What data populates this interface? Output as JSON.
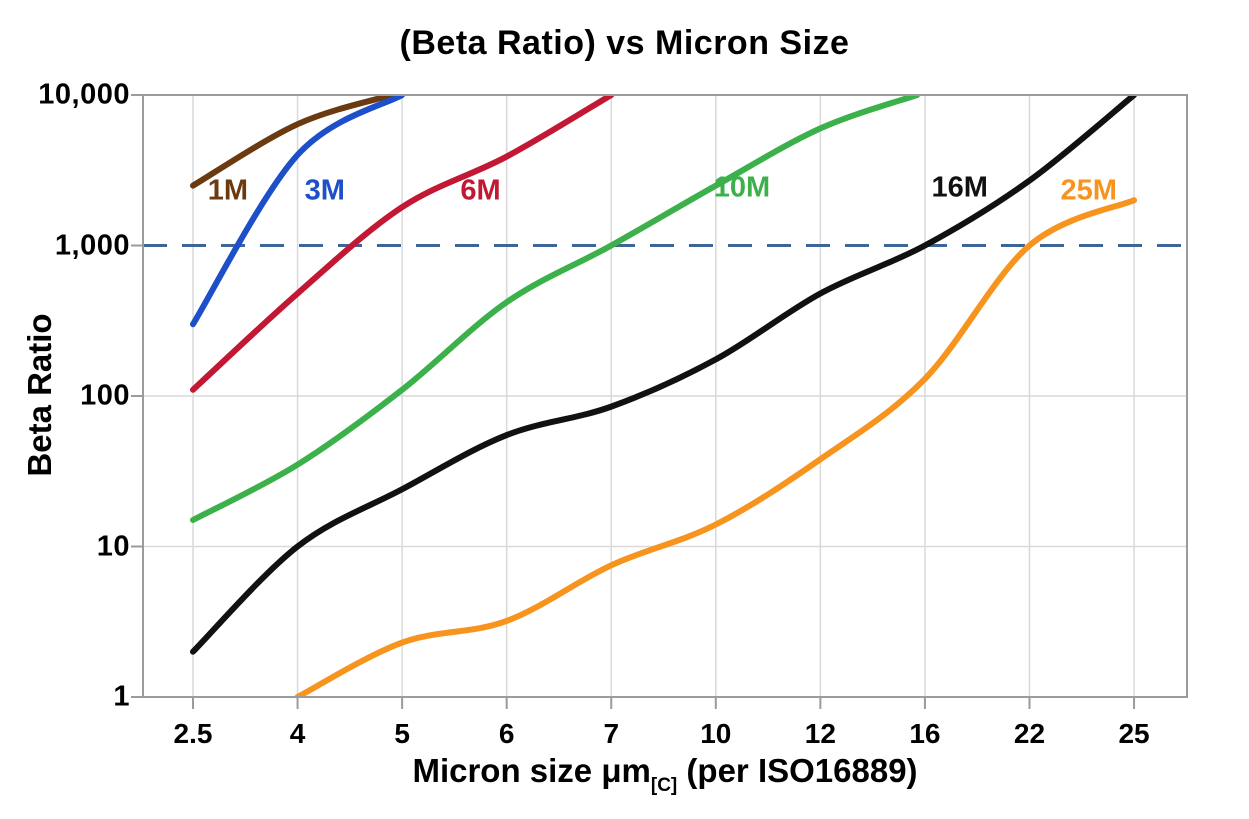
{
  "chart_data": {
    "type": "line",
    "title": "(Beta Ratio) vs Micron Size",
    "ylabel": "Beta Ratio",
    "xlabel": "Micron size μm[C] (per ISO16889)",
    "xlabel_parts": {
      "main": "Micron size μm",
      "sub": "[C]",
      "rest": " (per ISO16889)"
    },
    "y_scale": "log",
    "ylim": [
      1,
      10000
    ],
    "grid": "on",
    "x_ticks": [
      {
        "value": 2.5,
        "label": "2.5"
      },
      {
        "value": 4,
        "label": "4"
      },
      {
        "value": 5,
        "label": "5"
      },
      {
        "value": 6,
        "label": "6"
      },
      {
        "value": 7,
        "label": "7"
      },
      {
        "value": 10,
        "label": "10"
      },
      {
        "value": 12,
        "label": "12"
      },
      {
        "value": 16,
        "label": "16"
      },
      {
        "value": 22,
        "label": "22"
      },
      {
        "value": 25,
        "label": "25"
      }
    ],
    "y_ticks": [
      {
        "value": 1,
        "label": "1"
      },
      {
        "value": 10,
        "label": "10"
      },
      {
        "value": 100,
        "label": "100"
      },
      {
        "value": 1000,
        "label": "1,000"
      },
      {
        "value": 10000,
        "label": "10,000"
      }
    ],
    "y_gridlines": [
      10,
      100
    ],
    "reference_line": {
      "value": 1000,
      "style": "dashed",
      "color": "#3d6598"
    },
    "style": {
      "grid_color": "#d9d9d9",
      "axis_color": "#9b9b9b",
      "background": "#ffffff"
    },
    "series": [
      {
        "name": "1M",
        "color": "#6b3a10",
        "points": [
          [
            2.5,
            2500
          ],
          [
            4,
            6400
          ],
          [
            4.9,
            10000
          ]
        ],
        "label_pos": [
          3.0,
          2300
        ]
      },
      {
        "name": "3M",
        "color": "#1d4fc8",
        "points": [
          [
            2.5,
            300
          ],
          [
            4,
            4000
          ],
          [
            5,
            10000
          ]
        ],
        "label_pos": [
          4.26,
          2300
        ]
      },
      {
        "name": "6M",
        "color": "#c21833",
        "points": [
          [
            2.5,
            110
          ],
          [
            4,
            480
          ],
          [
            5,
            1800
          ],
          [
            6,
            3900
          ],
          [
            7,
            10000
          ]
        ],
        "label_pos": [
          5.75,
          2300
        ]
      },
      {
        "name": "10M",
        "color": "#3cb04a",
        "points": [
          [
            2.5,
            15
          ],
          [
            4,
            35
          ],
          [
            5,
            110
          ],
          [
            6,
            420
          ],
          [
            7,
            1000
          ],
          [
            10,
            2500
          ],
          [
            12,
            6000
          ],
          [
            15.7,
            10000
          ]
        ],
        "label_pos": [
          10.5,
          2400
        ]
      },
      {
        "name": "16M",
        "color": "#111111",
        "points": [
          [
            2.5,
            2
          ],
          [
            4,
            10
          ],
          [
            5,
            24
          ],
          [
            6,
            55
          ],
          [
            7,
            85
          ],
          [
            10,
            175
          ],
          [
            12,
            480
          ],
          [
            16,
            1000
          ],
          [
            22,
            2700
          ],
          [
            25,
            10000
          ]
        ],
        "label_pos": [
          18,
          2400
        ]
      },
      {
        "name": "25M",
        "color": "#f7941e",
        "points": [
          [
            4,
            1
          ],
          [
            5,
            2.3
          ],
          [
            6,
            3.2
          ],
          [
            7,
            7.5
          ],
          [
            10,
            14
          ],
          [
            12,
            38
          ],
          [
            16,
            130
          ],
          [
            22,
            1000
          ],
          [
            25,
            2000
          ]
        ],
        "label_pos": [
          23.7,
          2300
        ]
      }
    ]
  }
}
